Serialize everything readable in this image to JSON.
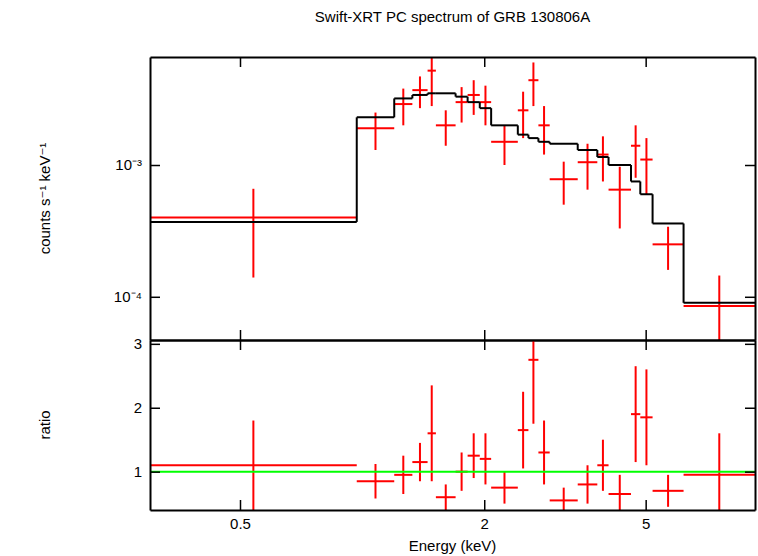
{
  "chart_data": [
    {
      "type": "scatter",
      "title": "Swift-XRT PC spectrum of GRB 130806A",
      "ylabel": "counts s⁻¹ keV⁻¹",
      "log": true,
      "xlim": [
        0.3,
        9.3
      ],
      "xticks": [
        0.5,
        2,
        5
      ],
      "ylim": [
        4.7e-05,
        0.0066
      ],
      "yticks": [
        {
          "value": 0.001,
          "label": "10⁻³"
        },
        {
          "value": 0.0001,
          "label": "10⁻⁴"
        }
      ],
      "tick_labels": "y",
      "bins": [
        0.3,
        0.97,
        1.2,
        1.33,
        1.45,
        1.52,
        1.7,
        1.82,
        1.95,
        2.08,
        2.42,
        2.57,
        2.72,
        2.9,
        3.4,
        3.8,
        4.05,
        4.6,
        4.85,
        5.2,
        6.2,
        9.3
      ],
      "series": [
        {
          "type": "scatter",
          "color": "#ff0000",
          "marker": "cross",
          "values": [
            0.0004,
            0.0019,
            0.0029,
            0.0037,
            0.0052,
            0.002,
            0.003,
            0.0034,
            0.003,
            0.0015,
            0.0026,
            0.0044,
            0.002,
            0.00078,
            0.00105,
            0.0012,
            0.00065,
            0.0014,
            0.0011,
            0.00025,
            8.5e-05
          ],
          "errors": [
            0.00026,
            0.0006,
            0.0009,
            0.001,
            0.0024,
            0.0006,
            0.0009,
            0.001,
            0.001,
            0.0005,
            0.001,
            0.0016,
            0.0008,
            0.00028,
            0.0004,
            0.00045,
            0.00032,
            0.0006,
            0.0005,
            9e-05,
            6e-05
          ]
        },
        {
          "type": "step",
          "color": "#000000",
          "line_style": "solid",
          "values": [
            0.00037,
            0.0023,
            0.0032,
            0.0034,
            0.0035,
            0.0035,
            0.0033,
            0.003,
            0.0027,
            0.002,
            0.0017,
            0.0016,
            0.0015,
            0.00145,
            0.0013,
            0.00115,
            0.001,
            0.00075,
            0.0006,
            0.00036,
            9e-05
          ]
        }
      ]
    },
    {
      "type": "scatter",
      "xlabel": "Energy (keV)",
      "ylabel": "ratio",
      "log": "x",
      "xlim": [
        0.3,
        9.3
      ],
      "xticks": [
        0.5,
        2,
        5
      ],
      "ylim": [
        0.4,
        3.06
      ],
      "yticks": [
        1,
        2,
        3
      ],
      "tick_labels": true,
      "bins": [
        0.3,
        0.97,
        1.2,
        1.33,
        1.45,
        1.52,
        1.7,
        1.82,
        1.95,
        2.08,
        2.42,
        2.57,
        2.72,
        2.9,
        3.4,
        3.8,
        4.05,
        4.6,
        4.85,
        5.2,
        6.2,
        9.3
      ],
      "series": [
        {
          "type": "scatter",
          "color": "#ff0000",
          "marker": "cross",
          "values": [
            1.1,
            0.85,
            0.95,
            1.15,
            1.6,
            0.6,
            1.0,
            1.25,
            1.2,
            0.75,
            1.65,
            2.75,
            1.3,
            0.55,
            0.8,
            1.1,
            0.65,
            1.9,
            1.85,
            0.7,
            0.95
          ],
          "errors": [
            0.7,
            0.27,
            0.3,
            0.3,
            0.75,
            0.2,
            0.3,
            0.35,
            0.4,
            0.25,
            0.6,
            1.0,
            0.5,
            0.2,
            0.3,
            0.4,
            0.3,
            0.75,
            0.75,
            0.25,
            0.65
          ]
        },
        {
          "type": "line",
          "color": "#00ff00",
          "line_style": "solid",
          "x": [
            0.3,
            9.3
          ],
          "values": [
            1,
            1
          ]
        }
      ]
    }
  ]
}
